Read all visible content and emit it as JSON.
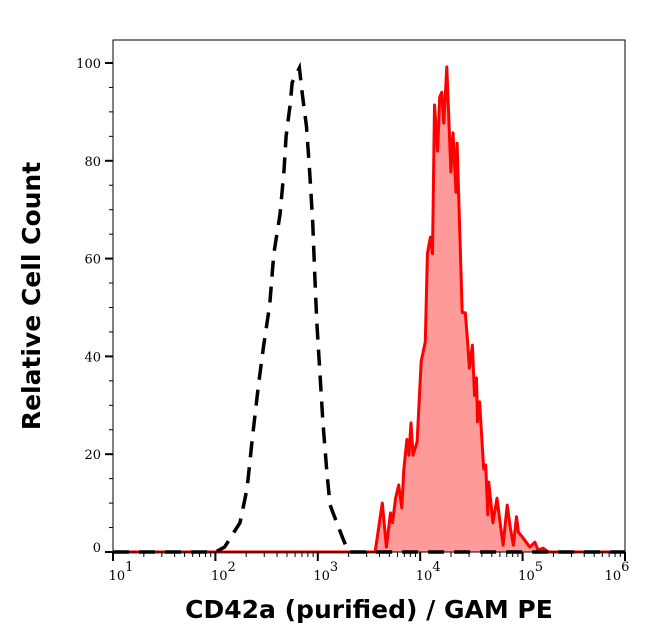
{
  "chart_data": {
    "type": "area",
    "xlabel": "CD42a (purified) / GAM PE",
    "ylabel": "Relative Cell Count",
    "x_scale": "log",
    "xlim": [
      10,
      1000000
    ],
    "ylim": [
      0,
      104.7
    ],
    "x_ticks": [
      {
        "base": "10",
        "exp": "1"
      },
      {
        "base": "10",
        "exp": "2"
      },
      {
        "base": "10",
        "exp": "3"
      },
      {
        "base": "10",
        "exp": "4"
      },
      {
        "base": "10",
        "exp": "5"
      },
      {
        "base": "10",
        "exp": "6"
      }
    ],
    "y_ticks": [
      "0",
      "20",
      "40",
      "60",
      "80",
      "100"
    ],
    "grid": false,
    "colors": {
      "stained": "#ff0000",
      "stained_fill": "#ff9a9a",
      "control": "#000000"
    },
    "series": [
      {
        "style": "dashed-black-line",
        "points": [
          [
            10,
            0
          ],
          [
            100,
            0
          ],
          [
            123,
            1
          ],
          [
            174,
            6
          ],
          [
            204,
            13
          ],
          [
            229,
            23
          ],
          [
            263,
            34
          ],
          [
            295,
            42
          ],
          [
            339,
            50.5
          ],
          [
            372,
            61
          ],
          [
            427,
            69
          ],
          [
            468,
            78
          ],
          [
            490,
            85
          ],
          [
            537,
            91.4
          ],
          [
            562,
            96
          ],
          [
            661,
            99
          ],
          [
            708,
            93.5
          ],
          [
            776,
            87
          ],
          [
            832,
            78
          ],
          [
            891,
            67.5
          ],
          [
            933,
            57
          ],
          [
            977,
            47
          ],
          [
            1047,
            37
          ],
          [
            1122,
            26.6
          ],
          [
            1230,
            16
          ],
          [
            1318,
            9.6
          ],
          [
            1738,
            3
          ],
          [
            1995,
            0
          ],
          [
            1000000,
            0
          ]
        ]
      },
      {
        "style": "red-filled-histogram",
        "points": [
          [
            10,
            0
          ],
          [
            3630,
            0
          ],
          [
            4266,
            10
          ],
          [
            4677,
            1
          ],
          [
            5129,
            8
          ],
          [
            5370,
            6
          ],
          [
            5754,
            11
          ],
          [
            6166,
            13.7
          ],
          [
            6607,
            9
          ],
          [
            6918,
            16.8
          ],
          [
            7413,
            23
          ],
          [
            7762,
            19.8
          ],
          [
            8128,
            26.4
          ],
          [
            8511,
            19.8
          ],
          [
            9333,
            22.5
          ],
          [
            10233,
            39
          ],
          [
            11220,
            43
          ],
          [
            11749,
            61
          ],
          [
            12589,
            64.4
          ],
          [
            13183,
            61
          ],
          [
            13804,
            91.4
          ],
          [
            14791,
            82
          ],
          [
            15488,
            93
          ],
          [
            16218,
            94
          ],
          [
            16982,
            87.7
          ],
          [
            18197,
            99.2
          ],
          [
            19953,
            77.7
          ],
          [
            20893,
            85.7
          ],
          [
            22387,
            73.6
          ],
          [
            22909,
            83.6
          ],
          [
            25704,
            49
          ],
          [
            27542,
            48.9
          ],
          [
            28840,
            43.8
          ],
          [
            30200,
            37.6
          ],
          [
            32359,
            42.3
          ],
          [
            33884,
            32
          ],
          [
            35481,
            35.6
          ],
          [
            36308,
            26.6
          ],
          [
            38019,
            30.7
          ],
          [
            41687,
            17
          ],
          [
            43652,
            17.8
          ],
          [
            45709,
            7.6
          ],
          [
            46774,
            14.3
          ],
          [
            51286,
            6
          ],
          [
            56234,
            11
          ],
          [
            60256,
            6
          ],
          [
            64565,
            1.4
          ],
          [
            70795,
            9.6
          ],
          [
            75858,
            5
          ],
          [
            81283,
            1.4
          ],
          [
            87096,
            7.2
          ],
          [
            91201,
            4
          ],
          [
            100000,
            3
          ],
          [
            117490,
            1
          ],
          [
            131826,
            2
          ],
          [
            141254,
            0.4
          ],
          [
            158489,
            0.8
          ],
          [
            177828,
            0
          ],
          [
            1000000,
            0
          ]
        ]
      }
    ]
  }
}
